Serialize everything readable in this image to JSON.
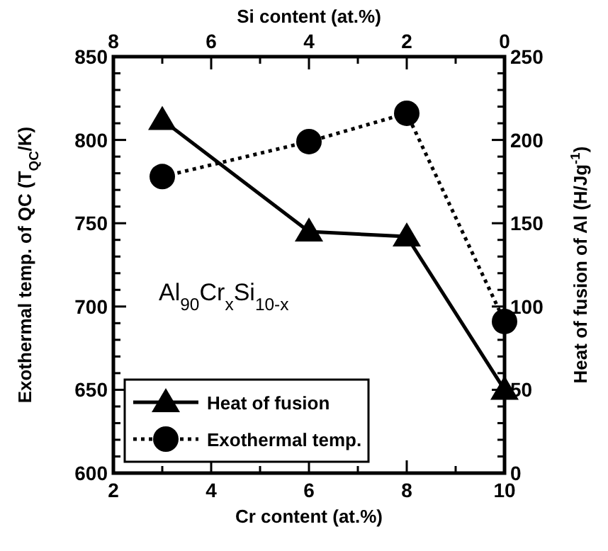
{
  "chart_data": {
    "type": "line",
    "xlabel": "Cr content (at.%)",
    "x2label": "Si content (at.%)",
    "ylabel": "Exothermal temp. of QC (T$_{QC}$/K)",
    "y2label": "Heat of fusion of Al (H/Jg$^{-1}$)",
    "x": [
      3,
      6,
      8,
      10
    ],
    "xlim": [
      2,
      10
    ],
    "xticks": [
      2,
      {
        "value": 3,
        "label": null
      },
      4,
      {
        "value": 5,
        "label": null
      },
      6,
      {
        "value": 7,
        "label": null
      },
      8,
      {
        "value": 9,
        "label": null
      },
      10
    ],
    "x2lim": [
      8,
      0
    ],
    "x2ticks": [
      8,
      {
        "value": 7,
        "label": null
      },
      6,
      {
        "value": 5,
        "label": null
      },
      4,
      {
        "value": 3,
        "label": null
      },
      2,
      {
        "value": 1,
        "label": null
      },
      0
    ],
    "ylim": [
      600,
      850
    ],
    "yticks": [
      600,
      {
        "value": 610,
        "label": null
      },
      {
        "value": 620,
        "label": null
      },
      {
        "value": 630,
        "label": null
      },
      {
        "value": 640,
        "label": null
      },
      650,
      {
        "value": 660,
        "label": null
      },
      {
        "value": 670,
        "label": null
      },
      {
        "value": 680,
        "label": null
      },
      {
        "value": 690,
        "label": null
      },
      700,
      {
        "value": 710,
        "label": null
      },
      {
        "value": 720,
        "label": null
      },
      {
        "value": 730,
        "label": null
      },
      {
        "value": 740,
        "label": null
      },
      750,
      {
        "value": 760,
        "label": null
      },
      {
        "value": 770,
        "label": null
      },
      {
        "value": 780,
        "label": null
      },
      {
        "value": 790,
        "label": null
      },
      800,
      {
        "value": 810,
        "label": null
      },
      {
        "value": 820,
        "label": null
      },
      {
        "value": 830,
        "label": null
      },
      {
        "value": 840,
        "label": null
      },
      850
    ],
    "y2lim": [
      0,
      250
    ],
    "y2ticks": [
      0,
      {
        "value": 10,
        "label": null
      },
      {
        "value": 20,
        "label": null
      },
      {
        "value": 30,
        "label": null
      },
      {
        "value": 40,
        "label": null
      },
      50,
      {
        "value": 60,
        "label": null
      },
      {
        "value": 70,
        "label": null
      },
      {
        "value": 80,
        "label": null
      },
      {
        "value": 90,
        "label": null
      },
      100,
      {
        "value": 110,
        "label": null
      },
      {
        "value": 120,
        "label": null
      },
      {
        "value": 130,
        "label": null
      },
      {
        "value": 140,
        "label": null
      },
      150,
      {
        "value": 160,
        "label": null
      },
      {
        "value": 170,
        "label": null
      },
      {
        "value": 180,
        "label": null
      },
      {
        "value": 190,
        "label": null
      },
      200,
      {
        "value": 210,
        "label": null
      },
      {
        "value": 220,
        "label": null
      },
      {
        "value": 230,
        "label": null
      },
      {
        "value": 240,
        "label": null
      },
      250
    ],
    "series": [
      {
        "name": "Heat of fusion",
        "color": "#000000",
        "values": [
          212,
          145,
          142,
          50
        ],
        "axis": "y2",
        "marker": "triangle",
        "line_style": "solid"
      },
      {
        "name": "Exothermal temp.",
        "color": "#000000",
        "values": [
          778,
          799,
          816,
          691
        ],
        "marker": "circle",
        "line_style": "dotted"
      }
    ],
    "annotations": [
      "Al$_{90}$Cr$_{x}$Si$_{10-x}$"
    ],
    "legend": "bottom left",
    "grid": false
  }
}
